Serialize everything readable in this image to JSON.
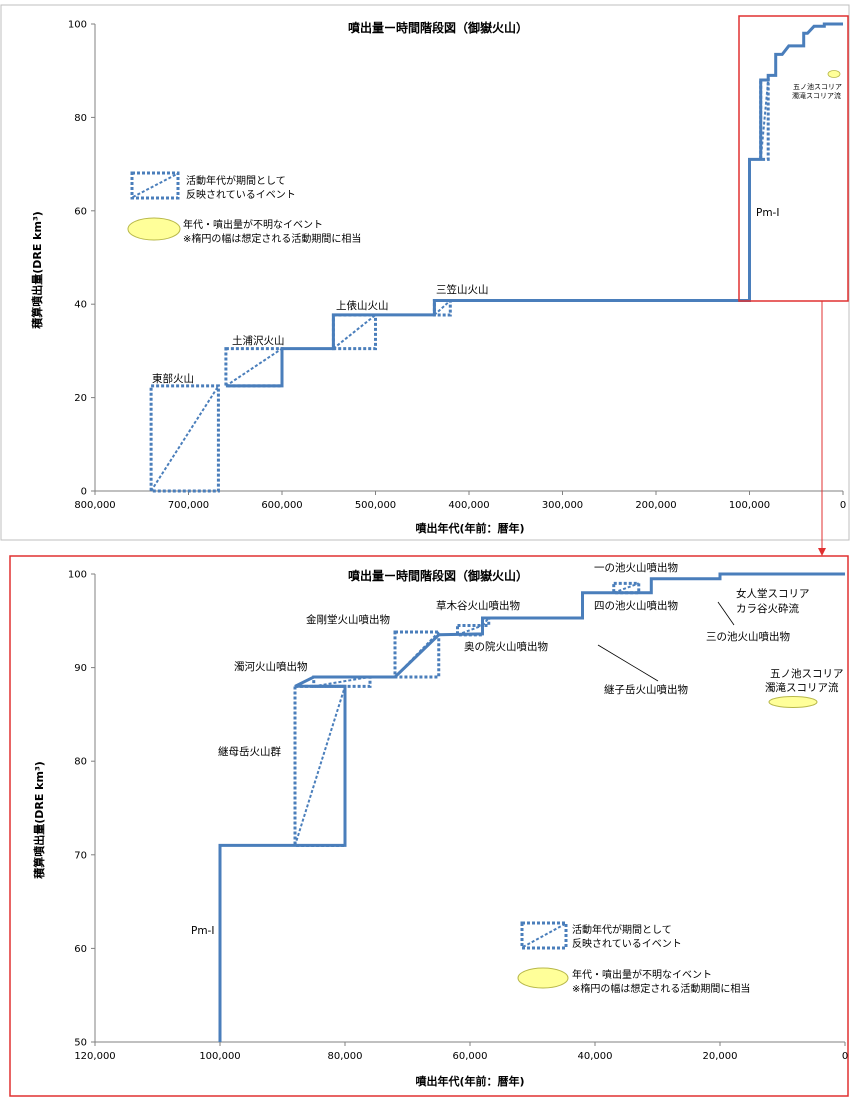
{
  "colors": {
    "series": "#4a7ebb",
    "ellipse_fill": "#ffff99",
    "ellipse_stroke": "#b8b84a",
    "highlight": "#e03030"
  },
  "legend": {
    "dotted_box_line1": "活動年代が期間として",
    "dotted_box_line2": "反映されているイベント",
    "ellipse_line1": "年代・噴出量が不明なイベント",
    "ellipse_line2": "※楕円の幅は想定される活動期間に相当"
  },
  "chart_data": [
    {
      "type": "line",
      "title": "噴出量ー時間階段図（御嶽火山）",
      "xlabel": "噴出年代(年前：暦年)",
      "ylabel": "積算噴出量(DRE km³)",
      "x_reversed": true,
      "xlim": [
        800000,
        0
      ],
      "ylim": [
        0,
        100
      ],
      "xticks": [
        800000,
        700000,
        600000,
        500000,
        400000,
        300000,
        200000,
        100000,
        0
      ],
      "xtick_labels": [
        "800,000",
        "700,000",
        "600,000",
        "500,000",
        "400,000",
        "300,000",
        "200,000",
        "100,000",
        "0"
      ],
      "yticks": [
        0,
        20,
        40,
        60,
        80,
        100
      ],
      "ytick_labels": [
        "0",
        "20",
        "40",
        "60",
        "80",
        "100"
      ],
      "series": [
        {
          "points": [
            [
              660000,
              22.5
            ],
            [
              600000,
              22.5
            ],
            [
              600000,
              30.5
            ],
            [
              545000,
              30.5
            ],
            [
              545000,
              37.7
            ],
            [
              437000,
              37.7
            ],
            [
              437000,
              40.8
            ],
            [
              100000,
              40.8
            ],
            [
              100000,
              71
            ],
            [
              88000,
              71
            ],
            [
              88000,
              88
            ],
            [
              80000,
              88
            ],
            [
              80000,
              89
            ],
            [
              72000,
              89
            ],
            [
              72000,
              93.5
            ],
            [
              65000,
              93.5
            ],
            [
              58000,
              95.3
            ],
            [
              42000,
              95.3
            ],
            [
              42000,
              98
            ],
            [
              38000,
              98
            ],
            [
              31000,
              99.5
            ],
            [
              20000,
              99.5
            ],
            [
              20000,
              100
            ],
            [
              0,
              100
            ]
          ]
        }
      ],
      "period_events": [
        {
          "label": "東部火山",
          "x_from": 740000,
          "x_to": 668000,
          "y_from": 0,
          "y_to": 22.5
        },
        {
          "label": "土浦沢火山",
          "x_from": 660000,
          "x_to": 600000,
          "y_from": 22.5,
          "y_to": 30.5
        },
        {
          "label": "上俵山火山",
          "x_from": 545000,
          "x_to": 500000,
          "y_from": 30.5,
          "y_to": 37.7
        },
        {
          "label": "三笠山火山",
          "x_from": 437000,
          "x_to": 420000,
          "y_from": 37.7,
          "y_to": 40.8
        },
        {
          "label": "",
          "x_from": 88000,
          "x_to": 80000,
          "y_from": 71,
          "y_to": 88
        }
      ],
      "annotations": [
        "東部火山",
        "土浦沢火山",
        "上俵山火山",
        "三笠山火山",
        "Pm-Ⅰ",
        "五ノ池スコリア",
        "濁滝スコリア流"
      ]
    },
    {
      "type": "line",
      "title": "噴出量ー時間階段図（御嶽火山）",
      "xlabel": "噴出年代(年前：暦年)",
      "ylabel": "積算噴出量(DRE km³)",
      "x_reversed": true,
      "xlim": [
        120000,
        0
      ],
      "ylim": [
        50,
        100
      ],
      "xticks": [
        120000,
        100000,
        80000,
        60000,
        40000,
        20000,
        0
      ],
      "xtick_labels": [
        "120,000",
        "100,000",
        "80,000",
        "60,000",
        "40,000",
        "20,000",
        "0"
      ],
      "yticks": [
        50,
        60,
        70,
        80,
        90,
        100
      ],
      "ytick_labels": [
        "50",
        "60",
        "70",
        "80",
        "90",
        "100"
      ],
      "series": [
        {
          "points": [
            [
              100000,
              50
            ],
            [
              100000,
              71
            ],
            [
              88000,
              71
            ],
            [
              80000,
              71
            ],
            [
              80000,
              88
            ],
            [
              88000,
              88
            ],
            [
              85000,
              89
            ],
            [
              76000,
              89
            ],
            [
              72000,
              89
            ],
            [
              65000,
              93.5
            ],
            [
              58000,
              93.6
            ],
            [
              58000,
              95.3
            ],
            [
              42000,
              95.3
            ],
            [
              42000,
              98
            ],
            [
              31000,
              98
            ],
            [
              31000,
              99.5
            ],
            [
              20000,
              99.5
            ],
            [
              20000,
              100
            ],
            [
              0,
              100
            ]
          ]
        }
      ],
      "period_events": [
        {
          "label": "継母岳火山群",
          "x_from": 88000,
          "x_to": 80000,
          "y_from": 71,
          "y_to": 88
        },
        {
          "label": "濁河火山噴出物",
          "x_from": 85000,
          "x_to": 76000,
          "y_from": 88,
          "y_to": 89
        },
        {
          "label": "金剛堂火山噴出物",
          "x_from": 72000,
          "x_to": 65000,
          "y_from": 89,
          "y_to": 93.8
        },
        {
          "label": "奥の院火山噴出物",
          "x_from": 62000,
          "x_to": 58000,
          "y_from": 93.5,
          "y_to": 94.5
        },
        {
          "label": "草木谷火山噴出物",
          "x_from": 58000,
          "x_to": 57000,
          "y_from": 94.5,
          "y_to": 95.3
        },
        {
          "label": "一の池火山噴出物",
          "x_from": 37000,
          "x_to": 33000,
          "y_from": 98,
          "y_to": 99
        }
      ],
      "annotations": [
        {
          "text": "Pm-Ⅰ"
        },
        {
          "text": "継母岳火山群"
        },
        {
          "text": "濁河火山噴出物"
        },
        {
          "text": "金剛堂火山噴出物"
        },
        {
          "text": "草木谷火山噴出物"
        },
        {
          "text": "奥の院火山噴出物"
        },
        {
          "text": "継子岳火山噴出物"
        },
        {
          "text": "一の池火山噴出物"
        },
        {
          "text": "四の池火山噴出物"
        },
        {
          "text": "女人堂スコリア"
        },
        {
          "text": "カラ谷火砕流"
        },
        {
          "text": "三の池火山噴出物"
        },
        {
          "text": "五ノ池スコリア"
        },
        {
          "text": "濁滝スコリア流"
        }
      ]
    }
  ]
}
